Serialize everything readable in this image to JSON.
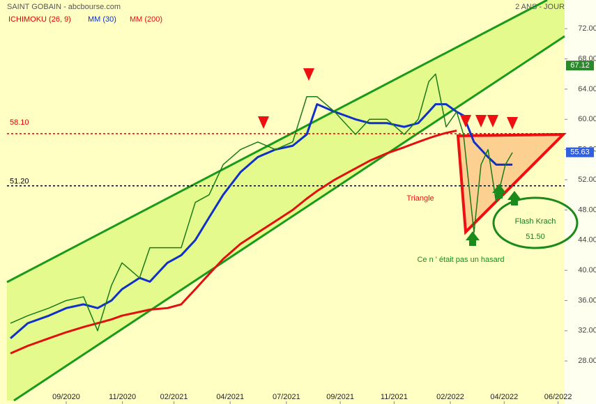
{
  "chart_data": {
    "type": "line",
    "title": "SAINT GOBAIN - abcbourse.com",
    "subtitle": "2 ANS - JOUR",
    "indicator": {
      "name": "ICHIMOKU (26, 9)",
      "color": "#dd0000"
    },
    "x": [
      -2.38,
      -1.64,
      -0.74,
      0,
      0.74,
      1.34,
      1.93,
      2.38,
      3.13,
      3.57,
      4.32,
      4.91,
      5.51,
      6.1,
      6.7,
      7.44,
      8.18,
      8.93,
      9.67,
      10.27,
      10.71,
      11.46,
      12.35,
      12.95,
      13.69,
      14.43,
      15.03,
      15.48,
      15.77,
      16.22,
      16.67,
      16.96,
      17.41,
      17.71,
      18.01,
      18.36,
      18.75,
      19.05
    ],
    "values": [
      33,
      34,
      35,
      36,
      36.5,
      32,
      38,
      41,
      39,
      43,
      43,
      43,
      49,
      50,
      54,
      56,
      57,
      56,
      57,
      63,
      63,
      61,
      58,
      60,
      60,
      58,
      60,
      65,
      66,
      59,
      61,
      58,
      45,
      54,
      56,
      49,
      54,
      55.6
    ],
    "color": "#1a7a1a",
    "series": [
      {
        "name": "MM (30)",
        "color": "#1030c8",
        "values": [
          31,
          33,
          34,
          35,
          35.5,
          35,
          36,
          37.5,
          39,
          38.5,
          41,
          42,
          44,
          47,
          50,
          53,
          55,
          56,
          56.5,
          58,
          62,
          61,
          60,
          59.5,
          59.5,
          59,
          59.5,
          61,
          62,
          62,
          61,
          60.5,
          57,
          56,
          55,
          54,
          54,
          54
        ]
      },
      {
        "name": "MM (200)",
        "color": "#e01010",
        "values": [
          29,
          30,
          31,
          31.8,
          32.5,
          33,
          33.5,
          34,
          34.5,
          34.8,
          35,
          35.5,
          37.5,
          39.5,
          41.5,
          43.5,
          45,
          46.5,
          48,
          49.5,
          50.5,
          52,
          53.5,
          54.5,
          55.5,
          56.3,
          57,
          57.5,
          57.8,
          58.2,
          58.5,
          null,
          null,
          null,
          null,
          null,
          null,
          null
        ]
      }
    ],
    "xlim": [
      -2.53,
      21.28
    ],
    "ylim": [
      22.3,
      75.8
    ],
    "xticks": [
      {
        "value": 0,
        "label": "09/2020"
      },
      {
        "value": 2.4,
        "label": "11/2020"
      },
      {
        "value": 4.6,
        "label": "02/2021"
      },
      {
        "value": 7.0,
        "label": "04/2021"
      },
      {
        "value": 9.4,
        "label": "07/2021"
      },
      {
        "value": 11.7,
        "label": "09/2021"
      },
      {
        "value": 14.0,
        "label": "11/2021"
      },
      {
        "value": 16.4,
        "label": "02/2022"
      },
      {
        "value": 18.7,
        "label": "04/2022"
      },
      {
        "value": 21.0,
        "label": "06/2022"
      }
    ],
    "yticks": [
      {
        "value": 28,
        "label": "28.00"
      },
      {
        "value": 32,
        "label": "32.00"
      },
      {
        "value": 36,
        "label": "36.00"
      },
      {
        "value": 40,
        "label": "40.00"
      },
      {
        "value": 44,
        "label": "44.00"
      },
      {
        "value": 48,
        "label": "48.00"
      },
      {
        "value": 52,
        "label": "52.00"
      },
      {
        "value": 56,
        "label": "56.00"
      },
      {
        "value": 60,
        "label": "60.00"
      },
      {
        "value": 64,
        "label": "64.00"
      },
      {
        "value": 68,
        "label": "68.00"
      },
      {
        "value": 72,
        "label": "72.00"
      }
    ],
    "levels": [
      {
        "value": 58.1,
        "label": "58.10",
        "color": "#dd0000"
      },
      {
        "value": 51.2,
        "label": "51.20",
        "color": "#000000"
      }
    ],
    "price_tags": [
      {
        "value": 67.12,
        "label": "67.12",
        "color": "#2a8a2a"
      },
      {
        "value": 55.63,
        "label": "55.63",
        "color": "#3060e0"
      }
    ],
    "annotations": [
      "Triangle",
      "Flash Krach",
      "51.50",
      "Ce n ' était pas un hasard"
    ]
  }
}
